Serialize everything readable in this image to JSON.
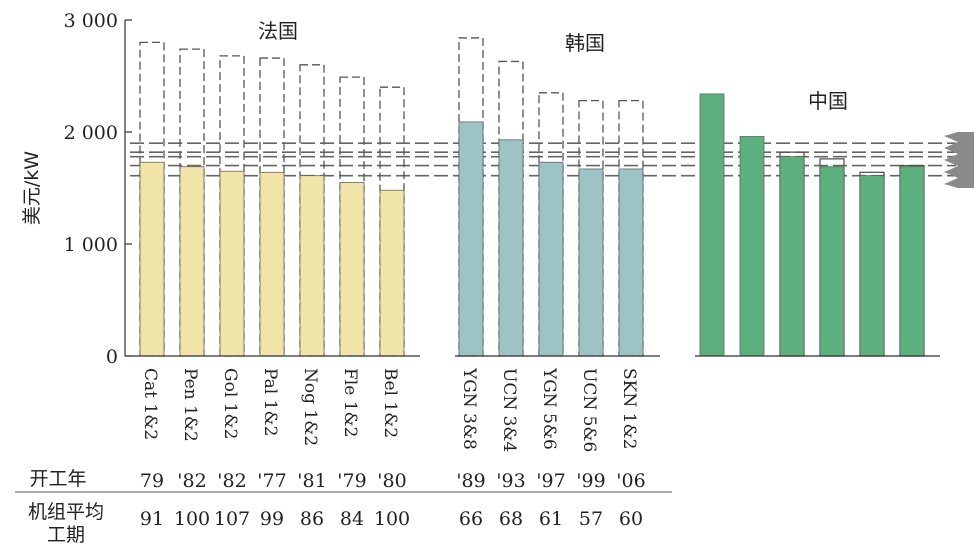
{
  "chart_data": {
    "type": "bar",
    "ylabel": "美元/kW",
    "ylim": [
      0,
      3000
    ],
    "yticks": [
      0,
      1000,
      2000,
      3000
    ],
    "ytick_labels": [
      "0",
      "1 000",
      "2 000",
      "3 000"
    ],
    "grid": false,
    "groups": [
      {
        "label": "法国",
        "color": "#f1e4a8",
        "bars": [
          {
            "category": "Cat 1&2",
            "value": 1730,
            "outline_top": 2800,
            "start_year": "79",
            "avg_period": "91"
          },
          {
            "category": "Pen 1&2",
            "value": 1690,
            "outline_top": 2740,
            "start_year": "'82",
            "avg_period": "100"
          },
          {
            "category": "Gol 1&2",
            "value": 1650,
            "outline_top": 2680,
            "start_year": "'82",
            "avg_period": "107"
          },
          {
            "category": "Pal 1&2",
            "value": 1640,
            "outline_top": 2660,
            "start_year": "'77",
            "avg_period": "99"
          },
          {
            "category": "Nog 1&2",
            "value": 1610,
            "outline_top": 2600,
            "start_year": "'81",
            "avg_period": "86"
          },
          {
            "category": "Fle 1&2",
            "value": 1550,
            "outline_top": 2490,
            "start_year": "'79",
            "avg_period": "84"
          },
          {
            "category": "Bel 1&2",
            "value": 1480,
            "outline_top": 2400,
            "start_year": "'80",
            "avg_period": "100"
          }
        ]
      },
      {
        "label": "韩国",
        "color": "#9dc3c5",
        "bars": [
          {
            "category": "YGN 3&8",
            "value": 2090,
            "outline_top": 2840,
            "start_year": "'89",
            "avg_period": "66"
          },
          {
            "category": "UCN 3&4",
            "value": 1930,
            "outline_top": 2630,
            "start_year": "'93",
            "avg_period": "68"
          },
          {
            "category": "YGN 5&6",
            "value": 1730,
            "outline_top": 2350,
            "start_year": "'97",
            "avg_period": "61"
          },
          {
            "category": "UCN 5&6",
            "value": 1670,
            "outline_top": 2280,
            "start_year": "'99",
            "avg_period": "57"
          },
          {
            "category": "SKN 1&2",
            "value": 1670,
            "outline_top": 2280,
            "start_year": "'06",
            "avg_period": "60"
          }
        ]
      },
      {
        "label": "中国",
        "color": "#5bb07d",
        "bars": [
          {
            "category": "",
            "value": 2340,
            "outline_top": null,
            "start_year": "",
            "avg_period": ""
          },
          {
            "category": "",
            "value": 1960,
            "outline_top": null,
            "start_year": "",
            "avg_period": ""
          },
          {
            "category": "",
            "value": 1780,
            "outline_top": 1820,
            "start_year": "",
            "avg_period": ""
          },
          {
            "category": "",
            "value": 1690,
            "outline_top": 1760,
            "start_year": "",
            "avg_period": ""
          },
          {
            "category": "",
            "value": 1610,
            "outline_top": 1640,
            "start_year": "",
            "avg_period": ""
          },
          {
            "category": "",
            "value": 1690,
            "outline_top": 1700,
            "start_year": "",
            "avg_period": ""
          }
        ]
      }
    ],
    "reference_lines": [
      1900,
      1820,
      1780,
      1700,
      1610
    ],
    "row_labels": {
      "start_year": "开工年",
      "avg_period_line1": "机组平均",
      "avg_period_line2": "工期"
    }
  }
}
